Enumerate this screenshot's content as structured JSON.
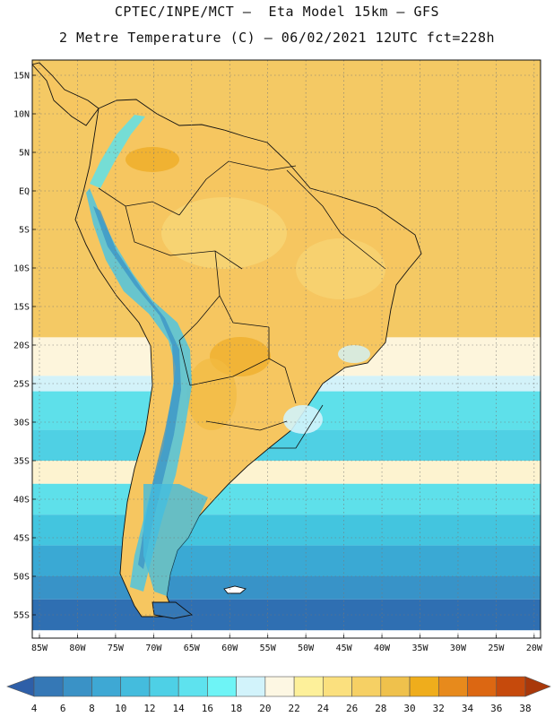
{
  "header": {
    "line1": "CPTEC/INPE/MCT –  Eta Model 15km – GFS",
    "line2": "2 Metre Temperature (C) – 06/02/2021 12UTC fct=228h"
  },
  "map": {
    "lat_labels": [
      "15N",
      "10N",
      "5N",
      "EQ",
      "5S",
      "10S",
      "15S",
      "20S",
      "25S",
      "30S",
      "35S",
      "40S",
      "45S",
      "50S",
      "55S"
    ],
    "lon_labels": [
      "85W",
      "80W",
      "75W",
      "70W",
      "65W",
      "60W",
      "55W",
      "50W",
      "45W",
      "40W",
      "35W",
      "30W",
      "25W",
      "20W"
    ],
    "lat_values": [
      15,
      10,
      5,
      0,
      -5,
      -10,
      -15,
      -20,
      -25,
      -30,
      -35,
      -40,
      -45,
      -50,
      -55
    ],
    "lon_values": [
      -85,
      -80,
      -75,
      -70,
      -65,
      -60,
      -55,
      -50,
      -45,
      -40,
      -35,
      -30,
      -25,
      -20
    ],
    "gridline_style": "dotted",
    "ocean_bands": [
      {
        "lat_from": 18,
        "lat_to": -19,
        "color": "#f4c964"
      },
      {
        "lat_from": -19,
        "lat_to": -24,
        "color": "#fdf5dc"
      },
      {
        "lat_from": -24,
        "lat_to": -26,
        "color": "#d3f2f9"
      },
      {
        "lat_from": -26,
        "lat_to": -31,
        "color": "#5ee0ea"
      },
      {
        "lat_from": -31,
        "lat_to": -35,
        "color": "#4fd0e4"
      },
      {
        "lat_from": -35,
        "lat_to": -38,
        "color": "#fdf3d0"
      },
      {
        "lat_from": -38,
        "lat_to": -42,
        "color": "#5ee0ea"
      },
      {
        "lat_from": -42,
        "lat_to": -46,
        "color": "#43c5df"
      },
      {
        "lat_from": -46,
        "lat_to": -50,
        "color": "#3aa9d4"
      },
      {
        "lat_from": -50,
        "lat_to": -53,
        "color": "#3893c8"
      },
      {
        "lat_from": -53,
        "lat_to": -57,
        "color": "#2f6fb2"
      }
    ]
  },
  "colorbar": {
    "labels": [
      "4",
      "6",
      "8",
      "10",
      "12",
      "14",
      "16",
      "18",
      "20",
      "22",
      "24",
      "26",
      "28",
      "30",
      "32",
      "34",
      "36",
      "38"
    ],
    "colors": [
      "#2e5fa8",
      "#3578b6",
      "#3a92c6",
      "#3ea8d4",
      "#44bcdd",
      "#4ed0e6",
      "#5ee2ee",
      "#6ef4f6",
      "#d2f3fb",
      "#fdf7e3",
      "#fdf09a",
      "#fbe07e",
      "#f6d064",
      "#efc14c",
      "#efad1c",
      "#e78a1c",
      "#dc6712",
      "#c64a0c",
      "#a9380a"
    ]
  }
}
